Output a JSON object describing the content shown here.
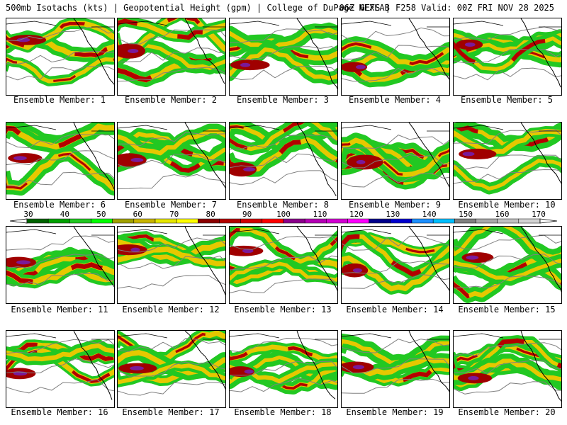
{
  "header": {
    "title_left": "500mb Isotachs (kts) | Geopotential Height (gpm) | College of DuPage NEXLAB",
    "title_right": "06Z GEFS | F258 Valid: 00Z FRI NOV 28 2025"
  },
  "panels": [
    {
      "label": "Ensemble Member: 1"
    },
    {
      "label": "Ensemble Member: 2"
    },
    {
      "label": "Ensemble Member: 3"
    },
    {
      "label": "Ensemble Member: 4"
    },
    {
      "label": "Ensemble Member: 5"
    },
    {
      "label": "Ensemble Member: 6"
    },
    {
      "label": "Ensemble Member: 7"
    },
    {
      "label": "Ensemble Member: 8"
    },
    {
      "label": "Ensemble Member: 9"
    },
    {
      "label": "Ensemble Member: 10"
    },
    {
      "label": "Ensemble Member: 11"
    },
    {
      "label": "Ensemble Member: 12"
    },
    {
      "label": "Ensemble Member: 13"
    },
    {
      "label": "Ensemble Member: 14"
    },
    {
      "label": "Ensemble Member: 15"
    },
    {
      "label": "Ensemble Member: 16"
    },
    {
      "label": "Ensemble Member: 17"
    },
    {
      "label": "Ensemble Member: 18"
    },
    {
      "label": "Ensemble Member: 19"
    },
    {
      "label": "Ensemble Member: 20"
    }
  ],
  "colorbar": {
    "labels": [
      "30",
      "40",
      "50",
      "60",
      "70",
      "80",
      "90",
      "100",
      "110",
      "120",
      "130",
      "140",
      "150",
      "160",
      "170"
    ],
    "colors": [
      "#006400",
      "#00a000",
      "#22c822",
      "#00ff00",
      "#a0a000",
      "#c8b400",
      "#e6e600",
      "#ffff00",
      "#8b0000",
      "#b40000",
      "#d20000",
      "#ff0000",
      "#8b008b",
      "#b400b4",
      "#d200d2",
      "#ff00ff",
      "#00008b",
      "#0000cd",
      "#1e90ff",
      "#00bfff",
      "#808080",
      "#a9a9a9",
      "#c0c0c0",
      "#d3d3d3"
    ],
    "colors_map": {
      "green": "#22c822",
      "yellow": "#e6e600",
      "red": "#b40000",
      "purple": "#8b008b",
      "grey": "#808080"
    }
  }
}
